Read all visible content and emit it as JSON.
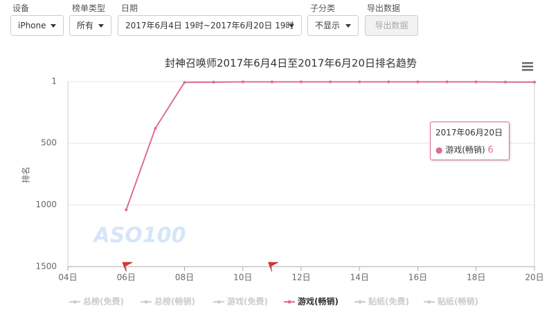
{
  "controls": {
    "labels": [
      "设备",
      "榜单类型",
      "日期",
      "子分类",
      "导出数据"
    ],
    "device": "iPhone",
    "list_type": "所有",
    "date_range": "2017年6月4日 19时~2017年6月20日 19时",
    "subcategory": "不显示",
    "export_button": "导出数据"
  },
  "chart_data": {
    "type": "line",
    "title": "封神召唤师2017年6月4日至2017年6月20日排名趋势",
    "y_label": "排名",
    "watermark": "ASO100",
    "x": [
      6,
      7,
      8,
      9,
      10,
      11,
      12,
      13,
      14,
      15,
      16,
      17,
      18,
      19,
      20
    ],
    "series": [
      {
        "name": "游戏(畅销)",
        "color": "#e0699a",
        "values": [
          1040,
          380,
          8,
          6,
          4,
          4,
          4,
          4,
          4,
          4,
          4,
          4,
          4,
          5,
          6
        ]
      }
    ],
    "xlim": [
      4,
      20
    ],
    "xticks": [
      {
        "value": 4,
        "label": "04日"
      },
      {
        "value": 6,
        "label": "06日"
      },
      {
        "value": 8,
        "label": "08日"
      },
      {
        "value": 10,
        "label": "10日"
      },
      {
        "value": 12,
        "label": "12日"
      },
      {
        "value": 14,
        "label": "14日"
      },
      {
        "value": 16,
        "label": "16日"
      },
      {
        "value": 18,
        "label": "18日"
      },
      {
        "value": 20,
        "label": "20日"
      }
    ],
    "ylim": [
      1,
      1500
    ],
    "y_reversed": true,
    "yticks": [
      1,
      500,
      1000,
      1500
    ],
    "grid": true,
    "flags": [
      6,
      11
    ],
    "legend": {
      "items": [
        "总榜(免费)",
        "总榜(畅销)",
        "游戏(免费)",
        "游戏(畅销)",
        "贴纸(免费)",
        "贴纸(畅销)"
      ],
      "active": 3,
      "inactive_color": "#cccccc"
    },
    "tooltip": {
      "title": "2017年06月20日",
      "index": 14
    }
  }
}
